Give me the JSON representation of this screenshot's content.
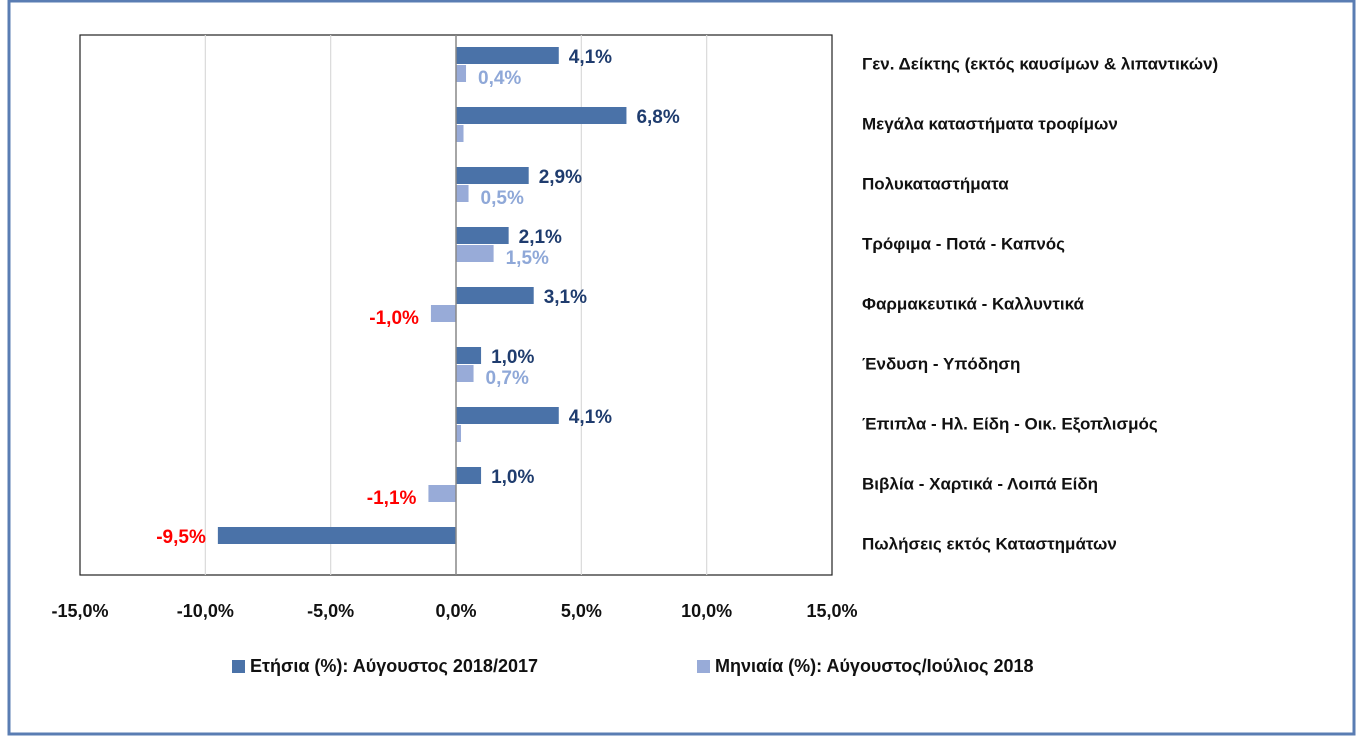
{
  "chart_data": {
    "type": "hbar",
    "categories": [
      "Γεν. Δείκτης (εκτός καυσίμων & λιπαντικών)",
      "Μεγάλα καταστήματα τροφίμων",
      "Πολυκαταστήματα",
      "Τρόφιμα - Ποτά - Καπνός",
      "Φαρμακευτικά - Καλλυντικά",
      "Ένδυση - Υπόδηση",
      "Έπιπλα - Ηλ. Είδη - Οικ. Εξοπλισμός",
      "Βιβλία - Χαρτικά - Λοιπά Είδη",
      "Πωλήσεις εκτός Καταστημάτων"
    ],
    "series": [
      {
        "name": "Ετήσια (%): Αύγουστος 2018/2017",
        "color": "#4a72a8",
        "label_color": "#1f3c6e",
        "values": [
          4.1,
          6.8,
          2.9,
          2.1,
          3.1,
          1.0,
          4.1,
          1.0,
          -9.5
        ],
        "value_labels": [
          "4,1%",
          "6,8%",
          "2,9%",
          "2,1%",
          "3,1%",
          "1,0%",
          "4,1%",
          "1,0%",
          "-9,5%"
        ]
      },
      {
        "name": "Μηνιαία (%): Αύγουστος/Ιούλιος 2018",
        "color": "#98abd8",
        "label_color": "#8fa8d8",
        "values": [
          0.4,
          0.3,
          0.5,
          1.5,
          -1.0,
          0.7,
          0.2,
          -1.1,
          null
        ],
        "value_labels": [
          "0,4%",
          null,
          "0,5%",
          "1,5%",
          "-1,0%",
          "0,7%",
          null,
          "-1,1%",
          null
        ]
      }
    ],
    "negative_label_color": "#ff0000",
    "xlim": [
      -15,
      15
    ],
    "xticks": [
      {
        "value": -15,
        "label": "-15,0%"
      },
      {
        "value": -10,
        "label": "-10,0%"
      },
      {
        "value": -5,
        "label": "-5,0%"
      },
      {
        "value": 0,
        "label": "0,0%"
      },
      {
        "value": 5,
        "label": "5,0%"
      },
      {
        "value": 10,
        "label": "10,0%"
      },
      {
        "value": 15,
        "label": "15,0%"
      }
    ],
    "grid": true,
    "legend": "bottom"
  }
}
